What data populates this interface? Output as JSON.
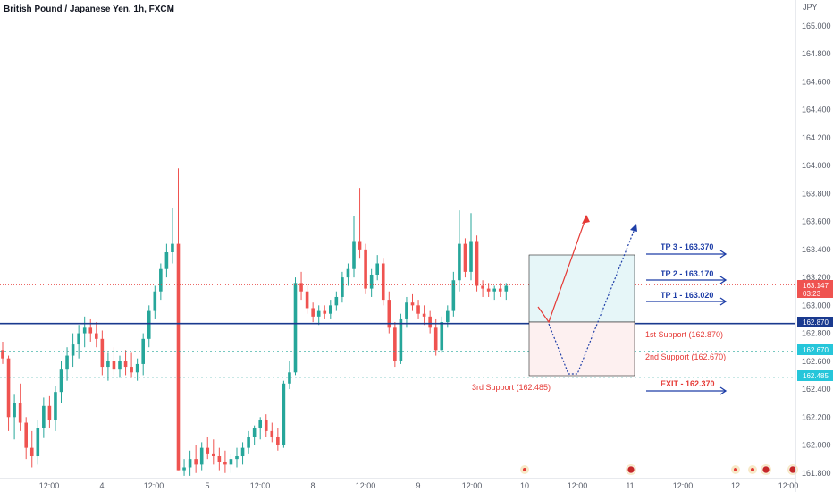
{
  "chart_data": {
    "type": "candlestick",
    "title": "British Pound / Japanese Yen, 1h, FXCM",
    "currency": "JPY",
    "ylim": [
      161.76,
      165.16
    ],
    "y_ticks": [
      "165.000",
      "164.800",
      "164.600",
      "164.400",
      "164.200",
      "164.000",
      "163.800",
      "163.600",
      "163.400",
      "163.200",
      "163.000",
      "162.800",
      "162.600",
      "162.400",
      "162.200",
      "162.000",
      "161.800"
    ],
    "x_ticks": [
      "12:00",
      "4",
      "12:00",
      "5",
      "12:00",
      "8",
      "12:00",
      "9",
      "12:00",
      "10",
      "12:00",
      "11",
      "12:00",
      "12",
      "12:00"
    ],
    "current_price": "163.147",
    "countdown": "03:23",
    "levels": {
      "blue_line": "162.870",
      "support_2": "162.670",
      "support_3": "162.485"
    },
    "labels": {
      "tp3": "TP 3 - 163.370",
      "tp2": "TP 2 - 163.170",
      "tp1": "TP 1 - 163.020",
      "support1": "1st Support (162.870)",
      "support2": "2nd Support (162.670)",
      "support3": "3rd Support (162.485)",
      "exit": "EXIT - 162.370"
    },
    "candles": [
      [
        162.68,
        162.74,
        162.58,
        162.62
      ],
      [
        162.62,
        162.64,
        162.1,
        162.2
      ],
      [
        162.2,
        162.36,
        162.04,
        162.3
      ],
      [
        162.3,
        162.44,
        162.1,
        162.16
      ],
      [
        162.16,
        162.2,
        161.9,
        161.98
      ],
      [
        161.98,
        162.1,
        161.84,
        161.92
      ],
      [
        161.92,
        162.18,
        161.86,
        162.12
      ],
      [
        162.12,
        162.34,
        162.05,
        162.28
      ],
      [
        162.28,
        162.35,
        162.12,
        162.18
      ],
      [
        162.18,
        162.42,
        162.1,
        162.38
      ],
      [
        162.38,
        162.6,
        162.3,
        162.54
      ],
      [
        162.54,
        162.7,
        162.46,
        162.64
      ],
      [
        162.64,
        162.8,
        162.56,
        162.72
      ],
      [
        162.72,
        162.86,
        162.62,
        162.8
      ],
      [
        162.8,
        162.92,
        162.7,
        162.84
      ],
      [
        162.84,
        162.9,
        162.74,
        162.8
      ],
      [
        162.8,
        162.88,
        162.7,
        162.76
      ],
      [
        162.76,
        162.82,
        162.5,
        162.56
      ],
      [
        162.56,
        162.66,
        162.46,
        162.6
      ],
      [
        162.6,
        162.7,
        162.5,
        162.54
      ],
      [
        162.54,
        162.64,
        162.48,
        162.6
      ],
      [
        162.6,
        162.68,
        162.5,
        162.56
      ],
      [
        162.56,
        162.66,
        162.48,
        162.52
      ],
      [
        162.52,
        162.62,
        162.46,
        162.58
      ],
      [
        162.58,
        162.8,
        162.5,
        162.76
      ],
      [
        162.76,
        163.0,
        162.7,
        162.96
      ],
      [
        162.96,
        163.14,
        162.9,
        163.1
      ],
      [
        163.1,
        163.3,
        163.04,
        163.26
      ],
      [
        163.26,
        163.44,
        163.2,
        163.38
      ],
      [
        163.38,
        163.7,
        163.3,
        163.44
      ],
      [
        163.44,
        163.98,
        161.82,
        161.82
      ],
      [
        161.82,
        161.9,
        161.78,
        161.84
      ],
      [
        161.84,
        161.96,
        161.78,
        161.9
      ],
      [
        161.9,
        162.0,
        161.8,
        161.86
      ],
      [
        161.86,
        162.02,
        161.82,
        161.98
      ],
      [
        161.98,
        162.06,
        161.9,
        161.94
      ],
      [
        161.94,
        162.04,
        161.86,
        161.92
      ],
      [
        161.92,
        161.98,
        161.82,
        161.88
      ],
      [
        161.88,
        161.96,
        161.8,
        161.86
      ],
      [
        161.86,
        161.94,
        161.8,
        161.9
      ],
      [
        161.9,
        161.98,
        161.84,
        161.92
      ],
      [
        161.92,
        162.02,
        161.86,
        161.98
      ],
      [
        161.98,
        162.1,
        161.94,
        162.06
      ],
      [
        162.06,
        162.14,
        162.0,
        162.12
      ],
      [
        162.12,
        162.2,
        162.04,
        162.18
      ],
      [
        162.18,
        162.22,
        162.06,
        162.1
      ],
      [
        162.1,
        162.16,
        162.02,
        162.06
      ],
      [
        162.06,
        162.12,
        161.96,
        162.0
      ],
      [
        162.0,
        162.46,
        161.98,
        162.44
      ],
      [
        162.44,
        162.6,
        162.4,
        162.52
      ],
      [
        162.52,
        163.2,
        162.5,
        163.16
      ],
      [
        163.16,
        163.24,
        163.04,
        163.1
      ],
      [
        163.1,
        163.14,
        162.94,
        162.98
      ],
      [
        162.98,
        163.02,
        162.88,
        162.92
      ],
      [
        162.92,
        163.0,
        162.86,
        162.96
      ],
      [
        162.96,
        163.0,
        162.9,
        162.94
      ],
      [
        162.94,
        163.04,
        162.9,
        163.0
      ],
      [
        163.0,
        163.1,
        162.96,
        163.06
      ],
      [
        163.06,
        163.24,
        163.02,
        163.2
      ],
      [
        163.2,
        163.3,
        163.14,
        163.26
      ],
      [
        163.26,
        163.64,
        163.2,
        163.46
      ],
      [
        163.46,
        163.84,
        163.34,
        163.4
      ],
      [
        163.4,
        163.44,
        163.08,
        163.12
      ],
      [
        163.12,
        163.26,
        163.06,
        163.22
      ],
      [
        163.22,
        163.36,
        163.18,
        163.3
      ],
      [
        163.3,
        163.34,
        163.0,
        163.04
      ],
      [
        163.04,
        163.1,
        162.8,
        162.84
      ],
      [
        162.84,
        162.88,
        162.56,
        162.6
      ],
      [
        162.6,
        162.94,
        162.58,
        162.9
      ],
      [
        162.9,
        163.06,
        162.84,
        163.02
      ],
      [
        163.02,
        163.08,
        162.96,
        163.0
      ],
      [
        163.0,
        163.04,
        162.9,
        162.94
      ],
      [
        162.94,
        163.0,
        162.86,
        162.92
      ],
      [
        162.92,
        162.96,
        162.8,
        162.84
      ],
      [
        162.84,
        162.9,
        162.64,
        162.68
      ],
      [
        162.68,
        162.92,
        162.66,
        162.88
      ],
      [
        162.88,
        163.0,
        162.84,
        162.96
      ],
      [
        162.96,
        163.24,
        162.92,
        163.18
      ],
      [
        163.18,
        163.68,
        163.1,
        163.44
      ],
      [
        163.44,
        163.48,
        163.2,
        163.24
      ],
      [
        163.24,
        163.66,
        163.18,
        163.46
      ],
      [
        163.46,
        163.5,
        163.1,
        163.14
      ],
      [
        163.14,
        163.18,
        163.06,
        163.12
      ],
      [
        163.12,
        163.16,
        163.06,
        163.1
      ],
      [
        163.1,
        163.14,
        163.04,
        163.12
      ],
      [
        163.12,
        163.16,
        163.06,
        163.1
      ],
      [
        163.1,
        163.16,
        163.04,
        163.14
      ]
    ]
  }
}
